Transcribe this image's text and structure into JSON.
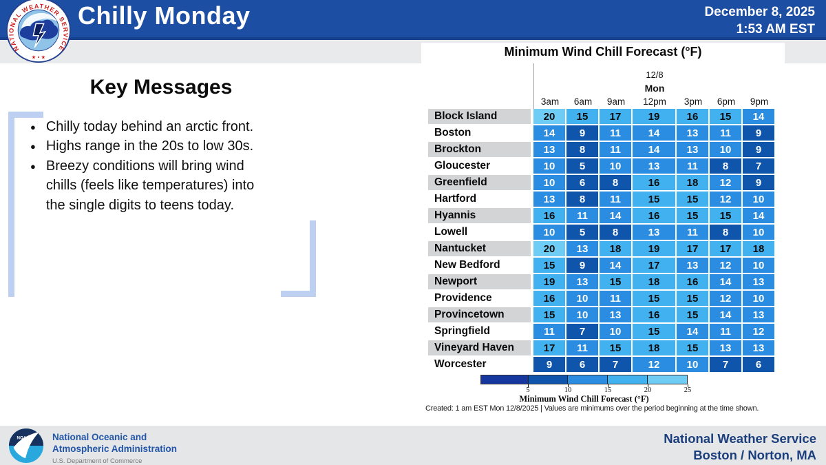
{
  "header": {
    "title": "Chilly Monday",
    "date_line1": "December 8, 2025",
    "date_line2": "1:53 AM EST"
  },
  "key_messages": {
    "title": "Key Messages",
    "bullets": [
      "Chilly today behind an arctic front.",
      "Highs range in the 20s to low 30s.",
      "Breezy conditions will bring wind chills (feels like temperatures) into the single digits to teens today."
    ]
  },
  "chart_data": {
    "type": "heatmap",
    "title": "Minimum Wind Chill Forecast (°F)",
    "column_group": {
      "date": "12/8",
      "day": "Mon"
    },
    "columns": [
      "3am",
      "6am",
      "9am",
      "12pm",
      "3pm",
      "6pm",
      "9pm"
    ],
    "rows": [
      {
        "city": "Block Island",
        "values": [
          20,
          15,
          17,
          19,
          16,
          15,
          14
        ]
      },
      {
        "city": "Boston",
        "values": [
          14,
          9,
          11,
          14,
          13,
          11,
          9
        ]
      },
      {
        "city": "Brockton",
        "values": [
          13,
          8,
          11,
          14,
          13,
          10,
          9
        ]
      },
      {
        "city": "Gloucester",
        "values": [
          10,
          5,
          10,
          13,
          11,
          8,
          7
        ]
      },
      {
        "city": "Greenfield",
        "values": [
          10,
          6,
          8,
          16,
          18,
          12,
          9
        ]
      },
      {
        "city": "Hartford",
        "values": [
          13,
          8,
          11,
          15,
          15,
          12,
          10
        ]
      },
      {
        "city": "Hyannis",
        "values": [
          16,
          11,
          14,
          16,
          15,
          15,
          14
        ]
      },
      {
        "city": "Lowell",
        "values": [
          10,
          5,
          8,
          13,
          11,
          8,
          10
        ]
      },
      {
        "city": "Nantucket",
        "values": [
          20,
          13,
          18,
          19,
          17,
          17,
          18
        ]
      },
      {
        "city": "New Bedford",
        "values": [
          15,
          9,
          14,
          17,
          13,
          12,
          10
        ]
      },
      {
        "city": "Newport",
        "values": [
          19,
          13,
          15,
          18,
          16,
          14,
          13
        ]
      },
      {
        "city": "Providence",
        "values": [
          16,
          10,
          11,
          15,
          15,
          12,
          10
        ]
      },
      {
        "city": "Provincetown",
        "values": [
          15,
          10,
          13,
          16,
          15,
          14,
          13
        ]
      },
      {
        "city": "Springfield",
        "values": [
          11,
          7,
          10,
          15,
          14,
          11,
          12
        ]
      },
      {
        "city": "Vineyard Haven",
        "values": [
          17,
          11,
          15,
          18,
          15,
          13,
          13
        ]
      },
      {
        "city": "Worcester",
        "values": [
          9,
          6,
          7,
          12,
          10,
          7,
          6
        ]
      }
    ],
    "colorbar": {
      "ticks": [
        "5",
        "10",
        "15",
        "20",
        "25"
      ],
      "segment_colors": [
        "#16379e",
        "#0f55ab",
        "#2b8de2",
        "#41b2ef",
        "#6fcdf5"
      ],
      "label": "Minimum Wind Chill Forecast (°F)"
    },
    "caption": "Created: 1 am EST Mon 12/8/2025  |  Values are minimums over the period beginning at the time shown.",
    "legend_position": "bottom",
    "value_bins": {
      "5-9": "#0f55ab",
      "10-14": "#2b8de2",
      "15-19": "#41b2ef",
      "20-25": "#6fcdf5"
    }
  },
  "colors": {
    "header_blue": "#1c4ea3",
    "strip_gray": "#e9eaec",
    "row_label_gray": "#d3d4d6",
    "cell_bin5": "#0f55ab",
    "cell_bin10": "#2b8de2",
    "cell_bin15": "#41b2ef",
    "cell_bin20": "#6fcdf5",
    "cell_text_light": "#ffffff",
    "cell_text_dark": "#0b0b0b"
  },
  "logos": {
    "nws_ring_text": "NATIONAL WEATHER SERVICE",
    "nws_ring_stars": "★ • ★",
    "noaa_label": "NOAA"
  },
  "footer": {
    "noaa_line1": "National Oceanic and",
    "noaa_line2": "Atmospheric Administration",
    "noaa_line3": "U.S. Department of Commerce",
    "nws_line1": "National Weather Service",
    "nws_line2": "Boston / Norton, MA"
  }
}
